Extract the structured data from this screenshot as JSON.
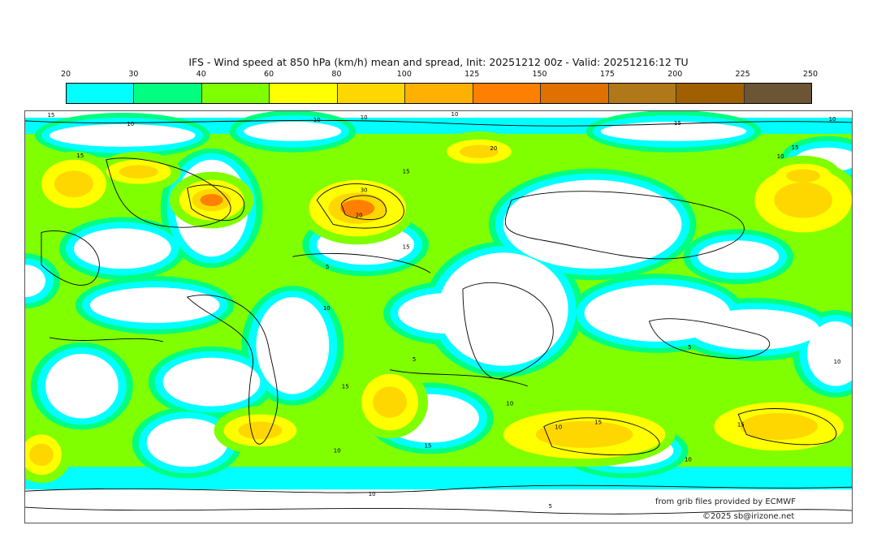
{
  "title": "IFS - Wind speed at 850 hPa (km/h) mean and spread, Init: 20251212 00z - Valid: 20251216:12 TU",
  "colorbar": {
    "ticks": [
      "20",
      "30",
      "40",
      "60",
      "80",
      "100",
      "125",
      "150",
      "175",
      "200",
      "225",
      "250"
    ],
    "colors": [
      "#00ffff",
      "#00ff80",
      "#80ff00",
      "#ffff00",
      "#ffd700",
      "#ffb000",
      "#ff8000",
      "#e07000",
      "#b07818",
      "#a06000",
      "#6b5535"
    ]
  },
  "map": {
    "contour_labels": [
      "15",
      "10",
      "10",
      "10",
      "10",
      "15",
      "10",
      "15",
      "20",
      "15",
      "10",
      "15",
      "30",
      "20",
      "15",
      "5",
      "10",
      "5",
      "15",
      "10",
      "15",
      "10",
      "10",
      "15",
      "5",
      "10",
      "15",
      "10",
      "5",
      "10"
    ]
  },
  "credits": {
    "source": "from grib files provided by ECMWF",
    "copyright": "©2025 sb@irizone.net"
  }
}
